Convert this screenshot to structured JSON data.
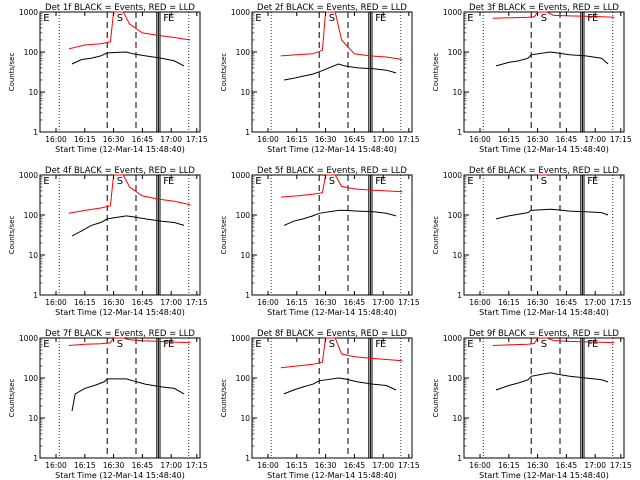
{
  "figure": {
    "background": "#ffffff",
    "axis_color": "#000000",
    "events_color": "#000000",
    "lld_color": "#ff0000"
  },
  "chart_data": [
    {
      "type": "line",
      "title": "Det 1f BLACK = Events, RED = LLD",
      "xlabel": "Start Time (12-Mar-14 15:48:40)",
      "ylabel": "Counts/sec",
      "x_tick_labels": [
        "16:00",
        "16:15",
        "16:30",
        "16:45",
        "17:00",
        "17:15"
      ],
      "y_tick_labels": [
        "1",
        "10",
        "100",
        "1000"
      ],
      "yscale": "log",
      "ylim": [
        1,
        1000
      ],
      "markers": [
        "E",
        "S",
        "F",
        "E"
      ],
      "series": [
        {
          "name": "LLD",
          "color": "#ff0000",
          "values": [
            [
              18,
              120
            ],
            [
              28,
              150
            ],
            [
              38,
              160
            ],
            [
              44,
              180
            ],
            [
              46,
              1000
            ],
            [
              52,
              1000
            ],
            [
              56,
              500
            ],
            [
              64,
              300
            ],
            [
              74,
              260
            ],
            [
              84,
              230
            ],
            [
              94,
              200
            ]
          ]
        },
        {
          "name": "Events",
          "color": "#000000",
          "values": [
            [
              20,
              50
            ],
            [
              26,
              65
            ],
            [
              32,
              70
            ],
            [
              38,
              80
            ],
            [
              42,
              95
            ],
            [
              54,
              100
            ],
            [
              58,
              90
            ],
            [
              66,
              80
            ],
            [
              76,
              70
            ],
            [
              84,
              60
            ],
            [
              90,
              45
            ]
          ]
        }
      ]
    },
    {
      "type": "line",
      "title": "Det 2f BLACK = Events, RED = LLD",
      "xlabel": "Start Time (12-Mar-14 15:48:40)",
      "ylabel": "Counts/sec",
      "x_tick_labels": [
        "16:00",
        "16:15",
        "16:30",
        "16:45",
        "17:00",
        "17:15"
      ],
      "y_tick_labels": [
        "1",
        "10",
        "100",
        "1000"
      ],
      "yscale": "log",
      "ylim": [
        1,
        1000
      ],
      "markers": [
        "E",
        "S",
        "F",
        "E"
      ],
      "series": [
        {
          "name": "LLD",
          "color": "#ff0000",
          "values": [
            [
              18,
              80
            ],
            [
              28,
              85
            ],
            [
              38,
              90
            ],
            [
              44,
              110
            ],
            [
              46,
              1000
            ],
            [
              52,
              1000
            ],
            [
              56,
              200
            ],
            [
              64,
              90
            ],
            [
              74,
              80
            ],
            [
              84,
              75
            ],
            [
              94,
              65
            ]
          ]
        },
        {
          "name": "Events",
          "color": "#000000",
          "values": [
            [
              20,
              20
            ],
            [
              26,
              22
            ],
            [
              32,
              25
            ],
            [
              38,
              28
            ],
            [
              42,
              32
            ],
            [
              54,
              50
            ],
            [
              58,
              45
            ],
            [
              66,
              40
            ],
            [
              76,
              38
            ],
            [
              84,
              35
            ],
            [
              90,
              30
            ]
          ]
        }
      ]
    },
    {
      "type": "line",
      "title": "Det 3f BLACK = Events, RED = LLD",
      "xlabel": "Start Time (12-Mar-14 15:48:40)",
      "ylabel": "Counts/sec",
      "x_tick_labels": [
        "16:00",
        "16:15",
        "16:30",
        "16:45",
        "17:00",
        "17:15"
      ],
      "y_tick_labels": [
        "1",
        "10",
        "100",
        "1000"
      ],
      "yscale": "log",
      "ylim": [
        1,
        1000
      ],
      "markers": [
        "E",
        "S",
        "F",
        "E"
      ],
      "series": [
        {
          "name": "LLD",
          "color": "#ff0000",
          "values": [
            [
              18,
              700
            ],
            [
              30,
              720
            ],
            [
              40,
              740
            ],
            [
              44,
              760
            ],
            [
              46,
              1000
            ],
            [
              52,
              1000
            ],
            [
              56,
              820
            ],
            [
              66,
              800
            ],
            [
              76,
              780
            ],
            [
              86,
              760
            ],
            [
              94,
              740
            ]
          ]
        },
        {
          "name": "Events",
          "color": "#000000",
          "values": [
            [
              20,
              45
            ],
            [
              28,
              55
            ],
            [
              34,
              60
            ],
            [
              40,
              70
            ],
            [
              42,
              85
            ],
            [
              54,
              100
            ],
            [
              58,
              95
            ],
            [
              66,
              85
            ],
            [
              76,
              80
            ],
            [
              86,
              70
            ],
            [
              90,
              50
            ]
          ]
        }
      ]
    },
    {
      "type": "line",
      "title": "Det 4f BLACK = Events, RED = LLD",
      "xlabel": "Start Time (12-Mar-14 15:48:40)",
      "ylabel": "Counts/sec",
      "x_tick_labels": [
        "16:00",
        "16:15",
        "16:30",
        "16:45",
        "17:00",
        "17:15"
      ],
      "y_tick_labels": [
        "1",
        "10",
        "100",
        "1000"
      ],
      "yscale": "log",
      "ylim": [
        1,
        1000
      ],
      "markers": [
        "E",
        "S",
        "F",
        "E"
      ],
      "series": [
        {
          "name": "LLD",
          "color": "#ff0000",
          "values": [
            [
              18,
              110
            ],
            [
              28,
              130
            ],
            [
              38,
              150
            ],
            [
              44,
              170
            ],
            [
              46,
              1000
            ],
            [
              52,
              1000
            ],
            [
              56,
              500
            ],
            [
              64,
              300
            ],
            [
              74,
              250
            ],
            [
              84,
              220
            ],
            [
              94,
              180
            ]
          ]
        },
        {
          "name": "Events",
          "color": "#000000",
          "values": [
            [
              20,
              30
            ],
            [
              26,
              40
            ],
            [
              32,
              55
            ],
            [
              38,
              65
            ],
            [
              42,
              80
            ],
            [
              54,
              95
            ],
            [
              58,
              90
            ],
            [
              66,
              80
            ],
            [
              76,
              70
            ],
            [
              84,
              65
            ],
            [
              90,
              55
            ]
          ]
        }
      ]
    },
    {
      "type": "line",
      "title": "Det 5f BLACK = Events, RED = LLD",
      "xlabel": "Start Time (12-Mar-14 15:48:40)",
      "ylabel": "Counts/sec",
      "x_tick_labels": [
        "16:00",
        "16:15",
        "16:30",
        "16:45",
        "17:00",
        "17:15"
      ],
      "y_tick_labels": [
        "1",
        "10",
        "100",
        "1000"
      ],
      "yscale": "log",
      "ylim": [
        1,
        1000
      ],
      "markers": [
        "E",
        "S",
        "F",
        "E"
      ],
      "series": [
        {
          "name": "LLD",
          "color": "#ff0000",
          "values": [
            [
              18,
              280
            ],
            [
              28,
              300
            ],
            [
              38,
              330
            ],
            [
              44,
              360
            ],
            [
              46,
              1000
            ],
            [
              52,
              1000
            ],
            [
              56,
              520
            ],
            [
              64,
              450
            ],
            [
              74,
              420
            ],
            [
              84,
              400
            ],
            [
              94,
              380
            ]
          ]
        },
        {
          "name": "Events",
          "color": "#000000",
          "values": [
            [
              20,
              55
            ],
            [
              26,
              70
            ],
            [
              32,
              80
            ],
            [
              38,
              95
            ],
            [
              42,
              110
            ],
            [
              54,
              130
            ],
            [
              58,
              130
            ],
            [
              66,
              125
            ],
            [
              76,
              120
            ],
            [
              84,
              110
            ],
            [
              90,
              95
            ]
          ]
        }
      ]
    },
    {
      "type": "line",
      "title": "Det 6f BLACK = Events, RED = LLD",
      "xlabel": "Start Time (12-Mar-14 15:48:40)",
      "ylabel": "Counts/sec",
      "x_tick_labels": [
        "16:00",
        "16:15",
        "16:30",
        "16:45",
        "17:00",
        "17:15"
      ],
      "y_tick_labels": [
        "1",
        "10",
        "100",
        "1000"
      ],
      "yscale": "log",
      "ylim": [
        1,
        1000
      ],
      "markers": [
        "E",
        "S",
        "F",
        "E"
      ],
      "series": [
        {
          "name": "LLD",
          "color": "#ff0000",
          "values": [
            [
              46,
              1000
            ],
            [
              52,
              1000
            ]
          ]
        },
        {
          "name": "Events",
          "color": "#000000",
          "values": [
            [
              20,
              80
            ],
            [
              28,
              95
            ],
            [
              34,
              105
            ],
            [
              40,
              115
            ],
            [
              42,
              130
            ],
            [
              54,
              140
            ],
            [
              58,
              135
            ],
            [
              66,
              125
            ],
            [
              76,
              120
            ],
            [
              86,
              115
            ],
            [
              90,
              100
            ]
          ]
        }
      ]
    },
    {
      "type": "line",
      "title": "Det 7f BLACK = Events, RED = LLD",
      "xlabel": "Start Time (12-Mar-14 15:48:40)",
      "ylabel": "Counts/sec",
      "x_tick_labels": [
        "16:00",
        "16:15",
        "16:30",
        "16:45",
        "17:00",
        "17:15"
      ],
      "y_tick_labels": [
        "1",
        "10",
        "100",
        "1000"
      ],
      "yscale": "log",
      "ylim": [
        1,
        1000
      ],
      "markers": [
        "E",
        "S",
        "F",
        "E"
      ],
      "series": [
        {
          "name": "LLD",
          "color": "#ff0000",
          "values": [
            [
              18,
              650
            ],
            [
              28,
              700
            ],
            [
              38,
              720
            ],
            [
              44,
              760
            ],
            [
              46,
              1000
            ],
            [
              52,
              1000
            ],
            [
              56,
              900
            ],
            [
              64,
              850
            ],
            [
              74,
              820
            ],
            [
              84,
              790
            ],
            [
              94,
              760
            ]
          ]
        },
        {
          "name": "Events",
          "color": "#000000",
          "values": [
            [
              20,
              15
            ],
            [
              22,
              40
            ],
            [
              28,
              55
            ],
            [
              34,
              65
            ],
            [
              40,
              80
            ],
            [
              42,
              95
            ],
            [
              54,
              95
            ],
            [
              58,
              85
            ],
            [
              66,
              70
            ],
            [
              76,
              60
            ],
            [
              84,
              55
            ],
            [
              90,
              40
            ]
          ]
        }
      ]
    },
    {
      "type": "line",
      "title": "Det 8f BLACK = Events, RED = LLD",
      "xlabel": "Start Time (12-Mar-14 15:48:40)",
      "ylabel": "Counts/sec",
      "x_tick_labels": [
        "16:00",
        "16:15",
        "16:30",
        "16:45",
        "17:00",
        "17:15"
      ],
      "y_tick_labels": [
        "1",
        "10",
        "100",
        "1000"
      ],
      "yscale": "log",
      "ylim": [
        1,
        1000
      ],
      "markers": [
        "E",
        "S",
        "F",
        "E"
      ],
      "series": [
        {
          "name": "LLD",
          "color": "#ff0000",
          "values": [
            [
              18,
              180
            ],
            [
              28,
              200
            ],
            [
              38,
              220
            ],
            [
              44,
              250
            ],
            [
              46,
              1000
            ],
            [
              52,
              1000
            ],
            [
              56,
              400
            ],
            [
              64,
              340
            ],
            [
              74,
              310
            ],
            [
              84,
              290
            ],
            [
              94,
              270
            ]
          ]
        },
        {
          "name": "Events",
          "color": "#000000",
          "values": [
            [
              20,
              40
            ],
            [
              26,
              50
            ],
            [
              32,
              60
            ],
            [
              38,
              70
            ],
            [
              42,
              85
            ],
            [
              54,
              100
            ],
            [
              58,
              95
            ],
            [
              66,
              80
            ],
            [
              76,
              70
            ],
            [
              84,
              65
            ],
            [
              90,
              50
            ]
          ]
        }
      ]
    },
    {
      "type": "line",
      "title": "Det 9f BLACK = Events, RED = LLD",
      "xlabel": "Start Time (12-Mar-14 15:48:40)",
      "ylabel": "Counts/sec",
      "x_tick_labels": [
        "16:00",
        "16:15",
        "16:30",
        "16:45",
        "17:00",
        "17:15"
      ],
      "y_tick_labels": [
        "1",
        "10",
        "100",
        "1000"
      ],
      "yscale": "log",
      "ylim": [
        1,
        1000
      ],
      "markers": [
        "E",
        "S",
        "F",
        "E"
      ],
      "series": [
        {
          "name": "LLD",
          "color": "#ff0000",
          "values": [
            [
              18,
              650
            ],
            [
              30,
              680
            ],
            [
              40,
              700
            ],
            [
              44,
              730
            ],
            [
              46,
              1000
            ],
            [
              52,
              1000
            ],
            [
              56,
              860
            ],
            [
              66,
              820
            ],
            [
              76,
              800
            ],
            [
              86,
              780
            ],
            [
              94,
              760
            ]
          ]
        },
        {
          "name": "Events",
          "color": "#000000",
          "values": [
            [
              20,
              50
            ],
            [
              28,
              65
            ],
            [
              34,
              75
            ],
            [
              40,
              90
            ],
            [
              42,
              110
            ],
            [
              54,
              135
            ],
            [
              58,
              125
            ],
            [
              66,
              110
            ],
            [
              76,
              100
            ],
            [
              86,
              90
            ],
            [
              90,
              80
            ]
          ]
        }
      ]
    }
  ]
}
